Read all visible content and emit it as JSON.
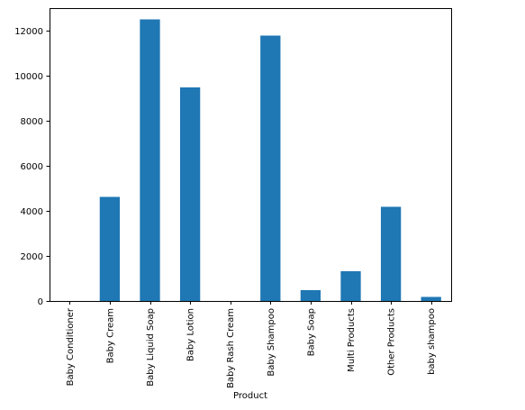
{
  "chart_data": {
    "type": "bar",
    "title": "",
    "xlabel": "Product",
    "ylabel": "",
    "categories": [
      "Baby Conditioner",
      "Baby Cream",
      "Baby Liquid Soap",
      "Baby Lotion",
      "Baby Rash Cream",
      "Baby Shampoo",
      "Baby Soap",
      "Multi Products",
      "Other Products",
      "baby shampoo"
    ],
    "values": [
      0,
      4620,
      12500,
      9480,
      0,
      11780,
      480,
      1320,
      4180,
      180
    ],
    "ylim": [
      0,
      13000
    ],
    "yticks": [
      0,
      2000,
      4000,
      6000,
      8000,
      10000,
      12000
    ],
    "bar_color": "#1f77b4",
    "grid": false,
    "legend": false
  }
}
